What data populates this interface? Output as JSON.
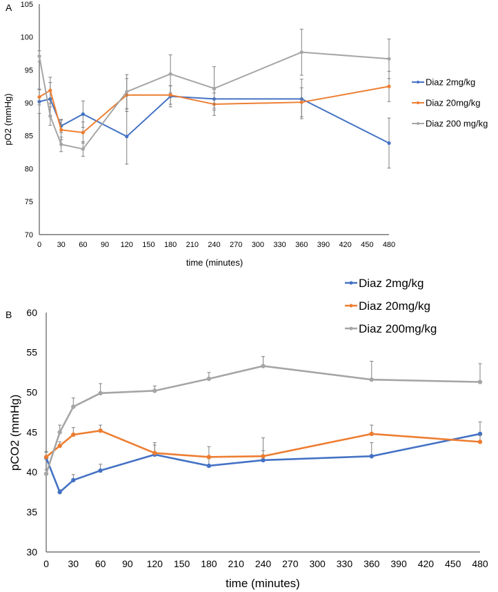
{
  "colors": {
    "blue": "#4472C4",
    "orange": "#ED7D31",
    "gray": "#A5A5A5",
    "axis": "#595959",
    "errorbar": "#7f7f7f"
  },
  "chart_data": [
    {
      "type": "line",
      "panel": "A",
      "title": "",
      "xlabel": "time (minutes)",
      "ylabel": "pO2 (mmHg)",
      "xlim": [
        0,
        480
      ],
      "ylim": [
        70,
        105
      ],
      "xticks": [
        0,
        30,
        60,
        90,
        120,
        150,
        180,
        210,
        240,
        270,
        300,
        330,
        360,
        390,
        420,
        450,
        480
      ],
      "yticks": [
        70,
        75,
        80,
        85,
        90,
        95,
        100,
        105
      ],
      "grid": false,
      "legend_position": "right",
      "error_style": "both",
      "x": [
        0,
        15,
        30,
        60,
        120,
        180,
        240,
        360,
        480
      ],
      "series": [
        {
          "name": "Diaz 2mg/kg",
          "color": "blue",
          "values": [
            90.2,
            90.6,
            86.5,
            88.3,
            84.9,
            91.0,
            90.6,
            90.6,
            83.9
          ],
          "errors": [
            1.8,
            2.5,
            1.0,
            2.0,
            4.2,
            1.6,
            1.4,
            3.0,
            3.8
          ]
        },
        {
          "name": "Diaz 20mg/kg",
          "color": "orange",
          "values": [
            90.9,
            91.9,
            85.9,
            85.5,
            91.2,
            91.2,
            89.8,
            90.1,
            92.5
          ],
          "errors": [
            1.2,
            2.0,
            1.5,
            1.6,
            2.5,
            1.4,
            1.7,
            2.2,
            2.3
          ]
        },
        {
          "name": "Diaz 200 mg/kg",
          "color": "gray",
          "values": [
            97.1,
            88.0,
            83.7,
            83.0,
            91.7,
            94.4,
            92.2,
            97.7,
            96.7
          ],
          "errors": [
            0.8,
            1.4,
            1.1,
            1.1,
            2.6,
            2.9,
            3.3,
            3.5,
            3.0
          ]
        }
      ]
    },
    {
      "type": "line",
      "panel": "B",
      "title": "",
      "xlabel": "time (minutes)",
      "ylabel": "pCO2 (mmHg)",
      "xlim": [
        0,
        480
      ],
      "ylim": [
        30,
        60
      ],
      "xticks": [
        0,
        30,
        60,
        90,
        120,
        150,
        180,
        210,
        240,
        270,
        300,
        330,
        360,
        390,
        420,
        450,
        480
      ],
      "yticks": [
        30,
        35,
        40,
        45,
        50,
        55,
        60
      ],
      "grid": false,
      "legend_position": "top-right",
      "error_style": "upper",
      "x": [
        0,
        15,
        30,
        60,
        120,
        180,
        240,
        360,
        480
      ],
      "series": [
        {
          "name": "Diaz 2mg/kg",
          "color": "blue",
          "values": [
            41.8,
            37.5,
            39.0,
            40.2,
            42.2,
            40.8,
            41.5,
            42.0,
            44.8
          ],
          "errors": [
            0.8,
            0.3,
            0.7,
            0.8,
            1.5,
            0.9,
            1.2,
            1.7,
            1.5
          ]
        },
        {
          "name": "Diaz 20mg/kg",
          "color": "orange",
          "values": [
            41.9,
            43.3,
            44.7,
            45.2,
            42.4,
            41.9,
            42.0,
            44.8,
            43.8
          ],
          "errors": [
            0.6,
            0.5,
            0.9,
            0.7,
            1.0,
            1.3,
            2.3,
            1.1,
            0.8
          ]
        },
        {
          "name": "Diaz 200mg/kg",
          "color": "gray",
          "values": [
            39.8,
            45.0,
            48.2,
            49.9,
            50.2,
            51.7,
            53.3,
            51.6,
            51.3
          ],
          "errors": [
            0.5,
            0.9,
            1.1,
            1.2,
            0.6,
            0.8,
            1.2,
            2.3,
            2.3
          ]
        }
      ]
    }
  ]
}
